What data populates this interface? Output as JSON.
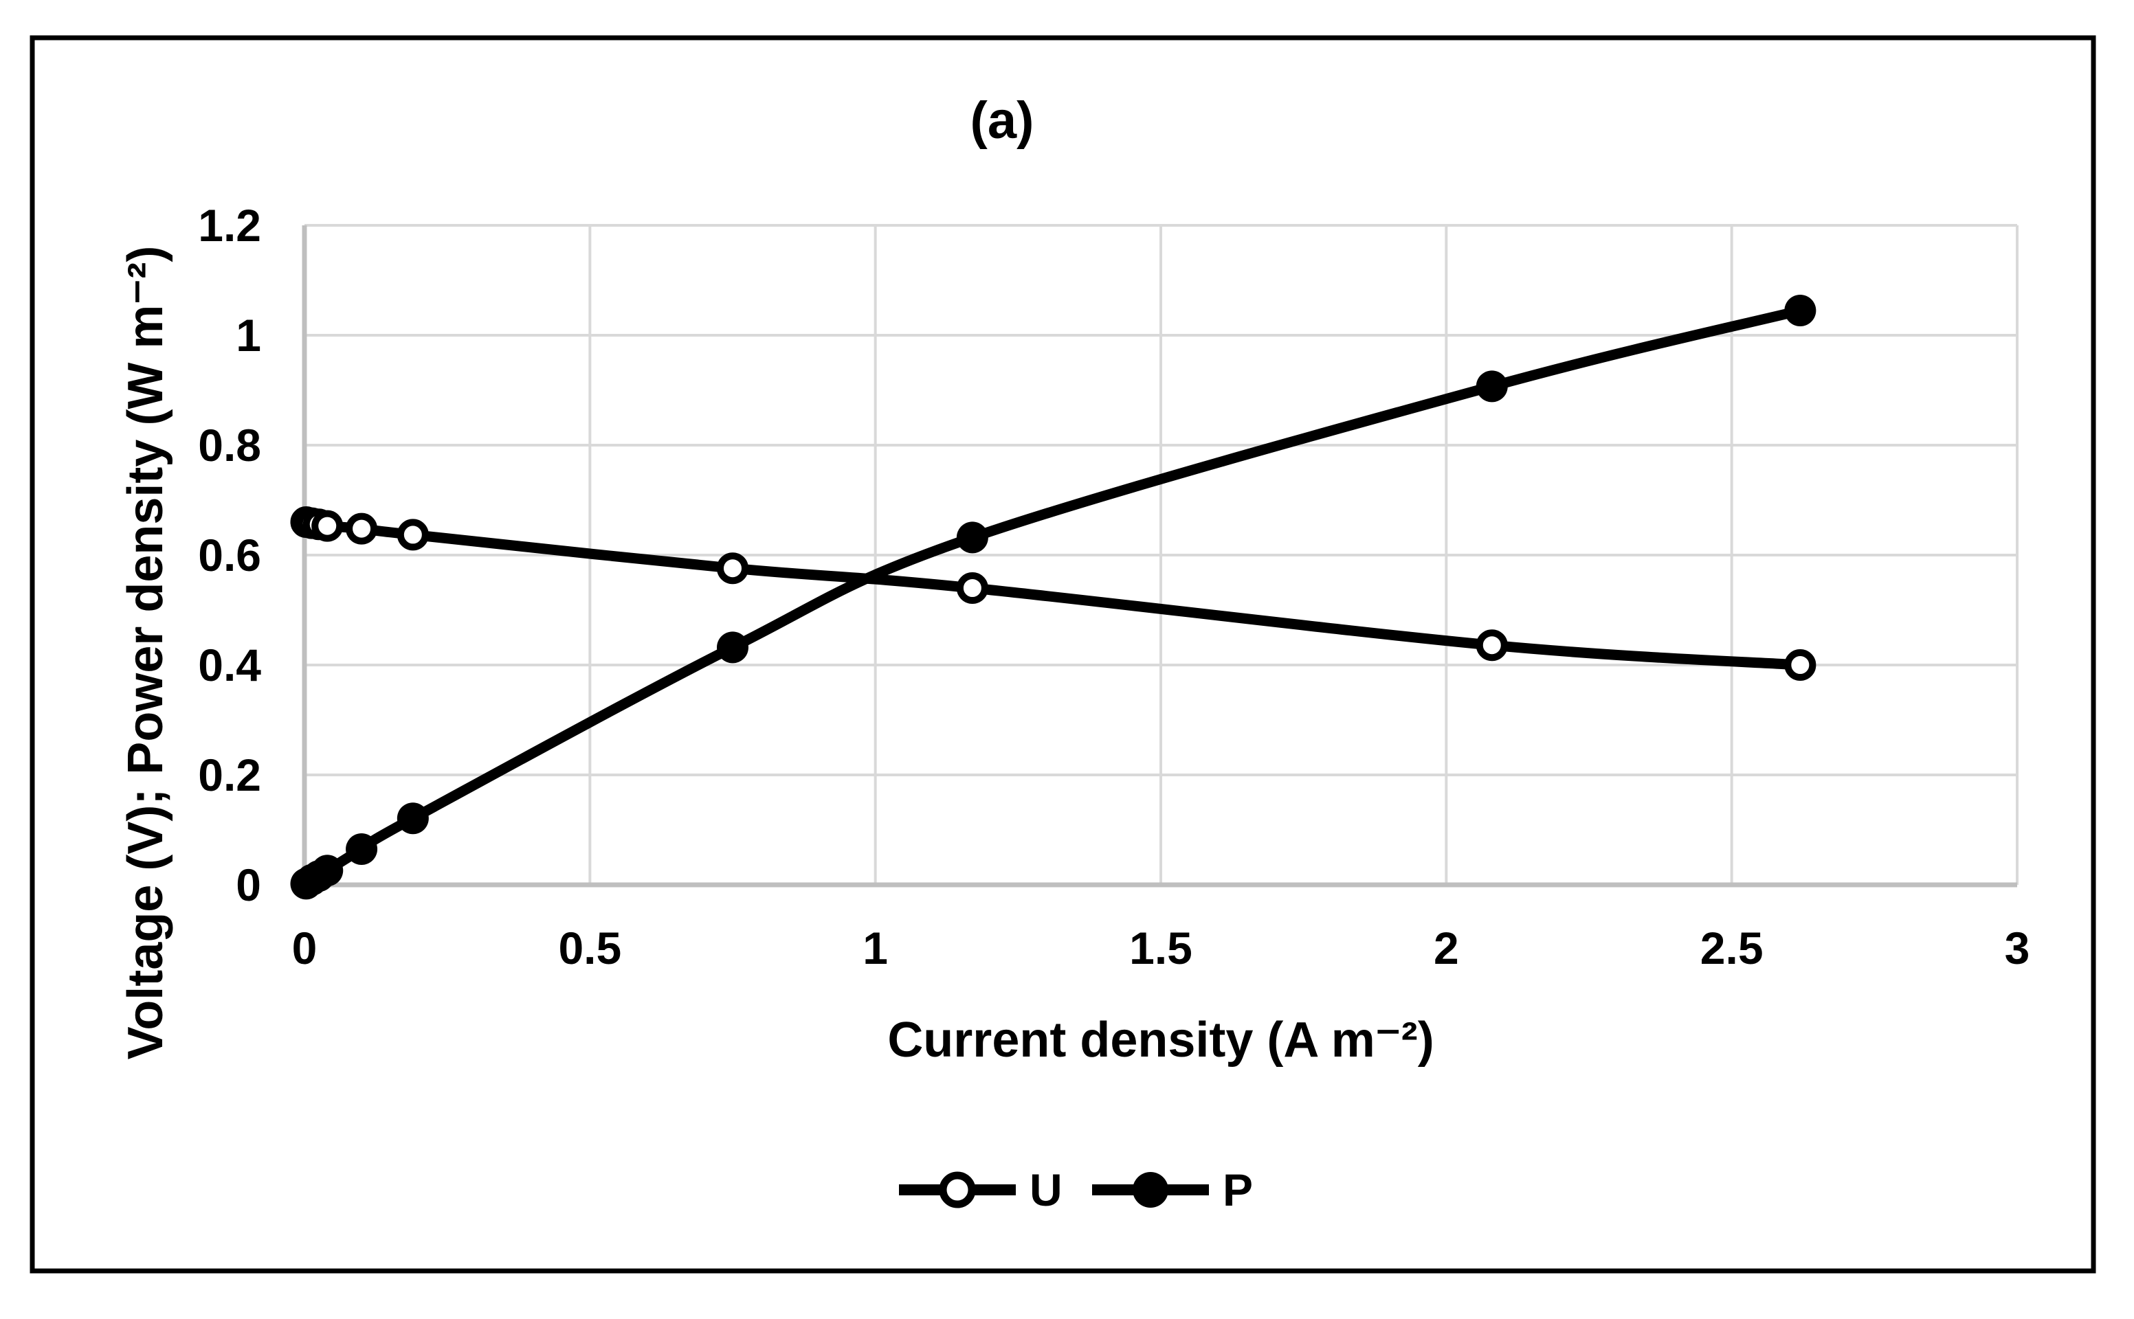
{
  "figure": {
    "panel_label": "(a)"
  },
  "colors": {
    "ink": "#000000",
    "gridline": "#d9d9d9",
    "axis_line": "#bfbfbf",
    "background": "#ffffff"
  },
  "chart_data": {
    "type": "line",
    "title": "(a)",
    "xlabel": "Current density (A m⁻²)",
    "ylabel": "Voltage (V); Power density (W m⁻²)",
    "xlim": [
      0,
      3
    ],
    "ylim": [
      0,
      1.2
    ],
    "grid": true,
    "legend_position": "bottom-center",
    "x_ticks": [
      0,
      0.5,
      1,
      1.5,
      2,
      2.5,
      3
    ],
    "x_tick_labels": [
      "0",
      "0.5",
      "1",
      "1.5",
      "2",
      "2.5",
      "3"
    ],
    "y_ticks": [
      0,
      0.2,
      0.4,
      0.6,
      0.8,
      1,
      1.2
    ],
    "y_tick_labels": [
      "0",
      "0.2",
      "0.4",
      "0.6",
      "0.8",
      "1",
      "1.2"
    ],
    "series": [
      {
        "name": "U",
        "marker": "open-circle",
        "color": "#000000",
        "x": [
          0.003,
          0.013,
          0.025,
          0.04,
          0.1,
          0.19,
          0.75,
          1.17,
          2.08,
          2.62
        ],
        "y": [
          0.66,
          0.658,
          0.656,
          0.653,
          0.648,
          0.637,
          0.576,
          0.54,
          0.436,
          0.4
        ]
      },
      {
        "name": "P",
        "marker": "filled-circle",
        "color": "#000000",
        "x": [
          0.003,
          0.013,
          0.025,
          0.04,
          0.1,
          0.19,
          0.75,
          1.17,
          2.08,
          2.62
        ],
        "y": [
          0.002,
          0.009,
          0.016,
          0.026,
          0.065,
          0.121,
          0.432,
          0.632,
          0.907,
          1.045
        ]
      }
    ]
  }
}
